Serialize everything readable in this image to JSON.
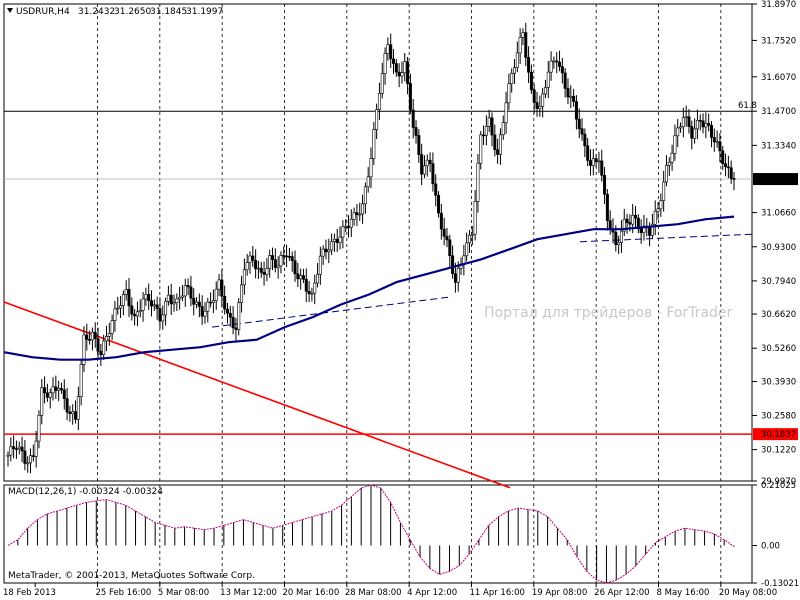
{
  "window": {
    "symbol_header": "USDRUR,H4",
    "ohlc": [
      "31.2432",
      "31.2650",
      "31.1845",
      "31.1997"
    ],
    "watermark": "Портал для трейдеров - ForTrader",
    "copyright": "MetaTrader, © 2001-2013, MetaQuotes Software Corp."
  },
  "colors": {
    "candle": "#000000",
    "ma": "#000080",
    "trend_up": "#000080",
    "trend_down": "#ff0000",
    "support_line": "#ff0000",
    "fib_line": "#000000",
    "current_price_line": "#c0c0c0",
    "macd_hist": "#000000",
    "macd_signal": "#c00080",
    "grid": "#000000"
  },
  "chart_data": [
    {
      "type": "candlestick",
      "name": "price",
      "y_ticks": [
        "31.8970",
        "31.7520",
        "31.6070",
        "31.4700",
        "31.3340",
        "31.1997",
        "31.0660",
        "30.9300",
        "30.7940",
        "30.6620",
        "30.5260",
        "30.3930",
        "30.2580",
        "30.1837",
        "30.1220",
        "29.9970"
      ],
      "ylim": [
        29.997,
        31.897
      ],
      "levels": {
        "fib_label": "61.8",
        "fib_value": 31.47,
        "support_value": 30.1837,
        "support_label": "30.1837",
        "current_value": 31.1997,
        "current_label": "31.1997"
      },
      "close_trace": [
        30.1,
        30.13,
        30.08,
        30.1,
        30.35,
        30.33,
        30.38,
        30.3,
        30.24,
        30.55,
        30.58,
        30.52,
        30.6,
        30.68,
        30.75,
        30.65,
        30.72,
        30.7,
        30.65,
        30.74,
        30.7,
        30.76,
        30.72,
        30.68,
        30.7,
        30.77,
        30.66,
        30.62,
        30.85,
        30.87,
        30.82,
        30.89,
        30.85,
        30.9,
        30.84,
        30.8,
        30.72,
        30.88,
        30.94,
        30.97,
        31.0,
        31.04,
        31.1,
        31.3,
        31.55,
        31.73,
        31.62,
        31.66,
        31.4,
        31.23,
        31.28,
        31.06,
        30.93,
        30.78,
        30.92,
        31.0,
        31.36,
        31.42,
        31.3,
        31.52,
        31.65,
        31.78,
        31.55,
        31.48,
        31.62,
        31.68,
        31.58,
        31.5,
        31.35,
        31.25,
        31.3,
        31.05,
        30.92,
        31.02,
        31.06,
        31.0,
        30.98,
        31.08,
        31.25,
        31.36,
        31.44,
        31.38,
        31.45,
        31.4,
        31.32,
        31.25,
        31.2
      ],
      "ma": [
        30.51,
        30.49,
        30.48,
        30.48,
        30.49,
        30.51,
        30.52,
        30.53,
        30.55,
        30.56,
        30.61,
        30.65,
        30.7,
        30.74,
        30.79,
        30.82,
        30.85,
        30.88,
        30.92,
        30.96,
        30.98,
        31.0,
        31.0,
        31.01,
        31.02,
        31.04,
        31.05
      ],
      "trendline_up": [
        [
          30.61,
          30.73
        ],
        [
          30.95,
          30.98
        ]
      ],
      "trendline_down": [
        30.71,
        29.97
      ]
    },
    {
      "type": "bar",
      "name": "MACD",
      "title": "MACD(12,26,1) -0.00324 -0.00324",
      "y_ticks": [
        "0.21025",
        "0.00",
        "-0.13021"
      ],
      "ylim": [
        -0.13021,
        0.21025
      ],
      "histogram": [
        0.0,
        0.02,
        0.06,
        0.09,
        0.11,
        0.12,
        0.13,
        0.14,
        0.15,
        0.155,
        0.16,
        0.15,
        0.14,
        0.12,
        0.1,
        0.08,
        0.07,
        0.06,
        0.065,
        0.06,
        0.055,
        0.06,
        0.07,
        0.08,
        0.09,
        0.08,
        0.07,
        0.06,
        0.07,
        0.08,
        0.09,
        0.1,
        0.11,
        0.12,
        0.14,
        0.17,
        0.2,
        0.21,
        0.2,
        0.15,
        0.08,
        0.02,
        -0.04,
        -0.08,
        -0.1,
        -0.09,
        -0.07,
        -0.03,
        0.02,
        0.07,
        0.1,
        0.12,
        0.13,
        0.125,
        0.12,
        0.1,
        0.06,
        0.02,
        -0.04,
        -0.09,
        -0.12,
        -0.13,
        -0.12,
        -0.1,
        -0.07,
        -0.03,
        0.01,
        0.03,
        0.05,
        0.06,
        0.055,
        0.05,
        0.04,
        0.02,
        -0.003
      ]
    }
  ],
  "x_axis": {
    "labels": [
      "18 Feb 2013",
      "25 Feb 16:00",
      "5 Mar 08:00",
      "13 Mar 12:00",
      "20 Mar 16:00",
      "28 Mar 08:00",
      "4 Apr 12:00",
      "11 Apr 16:00",
      "19 Apr 08:00",
      "26 Apr 12:00",
      "8 May 16:00",
      "20 May 08:00"
    ]
  }
}
